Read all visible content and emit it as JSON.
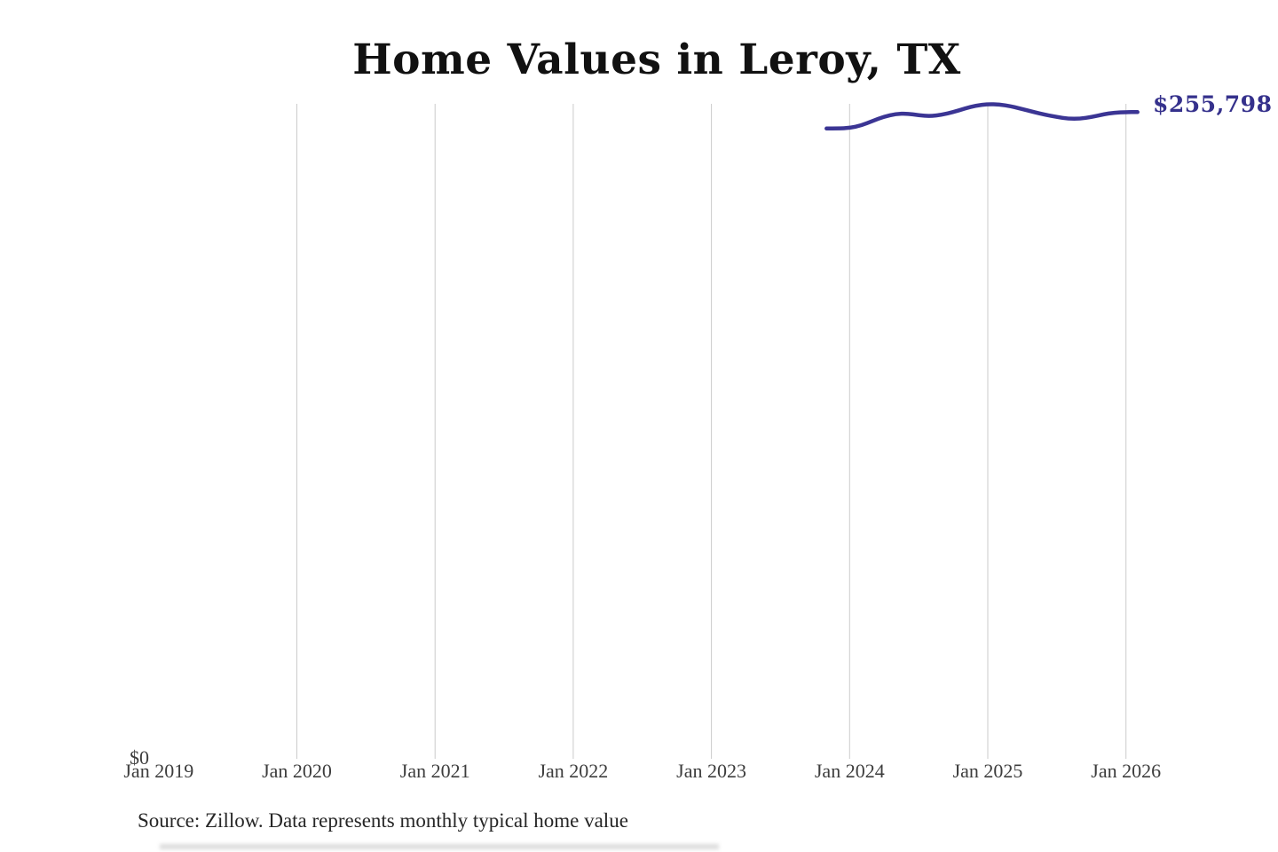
{
  "chart": {
    "title": "Home Values in Leroy, TX",
    "latest_value_label": "$255,798",
    "y_zero_label": "$0",
    "source": "Source: Zillow. Data represents monthly typical home value",
    "line_color": "#3b3594",
    "label_color": "#35318c",
    "gridline_color": "#cbcbcb",
    "axis_text_color": "#3d3d3d"
  },
  "chart_data": {
    "type": "line",
    "title": "Home Values in Leroy, TX",
    "series_name": "Monthly typical home value",
    "unit": "USD",
    "source": "Zillow",
    "grid": "vertical-gridlines-only",
    "legend": "none",
    "ylim": [
      0,
      275000
    ],
    "y_axis_labels_visible": [
      "$0"
    ],
    "end_annotation": "$255,798",
    "latest_value": 255798,
    "x_ticks": [
      {
        "label": "Jan 2019",
        "month": "2019-01",
        "gridline": false
      },
      {
        "label": "Jan 2020",
        "month": "2020-01",
        "gridline": true
      },
      {
        "label": "Jan 2021",
        "month": "2021-01",
        "gridline": true
      },
      {
        "label": "Jan 2022",
        "month": "2022-01",
        "gridline": true
      },
      {
        "label": "Jan 2023",
        "month": "2023-01",
        "gridline": true
      },
      {
        "label": "Jan 2024",
        "month": "2024-01",
        "gridline": true
      },
      {
        "label": "Jan 2025",
        "month": "2025-01",
        "gridline": true
      },
      {
        "label": "Jan 2026",
        "month": "2026-01",
        "gridline": true
      }
    ],
    "months": [
      "2023-11",
      "2023-12",
      "2024-01",
      "2024-02",
      "2024-03",
      "2024-04",
      "2024-05",
      "2024-06",
      "2024-07",
      "2024-08",
      "2024-09",
      "2024-10",
      "2024-11",
      "2024-12",
      "2025-01",
      "2025-02",
      "2025-03",
      "2025-04",
      "2025-05",
      "2025-06",
      "2025-07",
      "2025-08",
      "2025-09",
      "2025-10",
      "2025-11",
      "2025-12",
      "2026-01",
      "2026-02"
    ],
    "values": [
      249300,
      249350,
      249500,
      250500,
      252300,
      254000,
      255100,
      255250,
      254550,
      254200,
      254750,
      255800,
      257200,
      258400,
      258950,
      258800,
      258100,
      257000,
      255800,
      254750,
      253850,
      253150,
      253150,
      253850,
      254900,
      255600,
      255790,
      255798
    ]
  }
}
